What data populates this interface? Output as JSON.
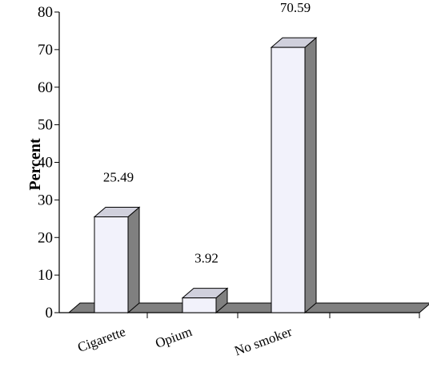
{
  "chart_data": {
    "type": "bar",
    "style": "3d",
    "categories": [
      "Cigarette",
      "Opium",
      "No smoker"
    ],
    "values": [
      25.49,
      3.92,
      70.59
    ],
    "value_labels": [
      "25.49",
      "3.92",
      "70.59"
    ],
    "title": "",
    "xlabel": "",
    "ylabel": "Percent",
    "ylim": [
      0,
      80
    ],
    "yticks": [
      0,
      10,
      20,
      30,
      40,
      50,
      60,
      70,
      80
    ],
    "grid": false,
    "legend": "none",
    "colors": {
      "bar_front": "#f2f2fb",
      "bar_top": "#d0d0dc",
      "bar_side": "#808080",
      "floor": "#808080",
      "axis": "#000000"
    }
  }
}
